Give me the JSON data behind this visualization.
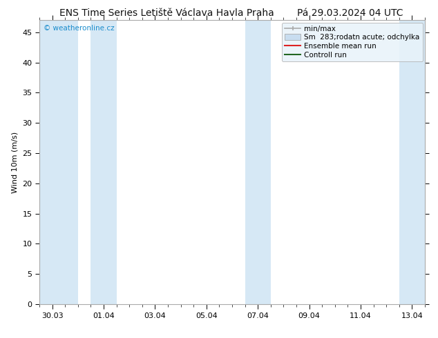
{
  "title": "ENS Time Series Letiště Václava Havla Praha",
  "subtitle": "Pá 29.03.2024 04 UTC",
  "ylabel": "Wind 10m (m/s)",
  "ylim": [
    0,
    47
  ],
  "yticks": [
    0,
    5,
    10,
    15,
    20,
    25,
    30,
    35,
    40,
    45
  ],
  "xlim_start": -0.5,
  "xlim_end": 14.5,
  "xtick_labels": [
    "30.03",
    "01.04",
    "03.04",
    "05.04",
    "07.04",
    "09.04",
    "11.04",
    "13.04"
  ],
  "xtick_positions": [
    0,
    2,
    4,
    6,
    8,
    10,
    12,
    14
  ],
  "shaded_bands": [
    [
      -0.5,
      1.0
    ],
    [
      1.5,
      2.5
    ],
    [
      7.5,
      8.5
    ],
    [
      13.5,
      14.5
    ]
  ],
  "band_color": "#d6e8f5",
  "background_color": "#ffffff",
  "plot_bg_color": "#ffffff",
  "watermark": "© weatheronline.cz",
  "watermark_color": "#1a8ccc",
  "legend_labels": [
    "min/max",
    "Sm  283;rodatn acute; odchylka",
    "Ensemble mean run",
    "Controll run"
  ],
  "legend_colors_line": [
    "#999999",
    "#c5ddf0",
    "#dd2222",
    "#227722"
  ],
  "title_fontsize": 10,
  "subtitle_fontsize": 10,
  "axis_fontsize": 8,
  "tick_fontsize": 8,
  "legend_fontsize": 7.5
}
